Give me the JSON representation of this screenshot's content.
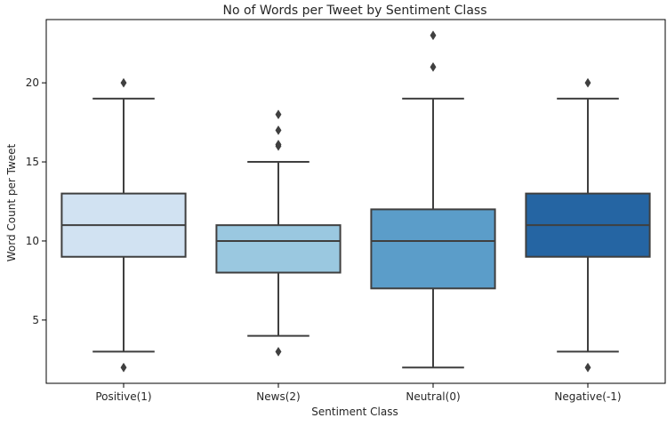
{
  "chart_data": {
    "type": "boxplot",
    "title": "No of Words per Tweet by Sentiment Class",
    "xlabel": "Sentiment Class",
    "ylabel": "Word Count per Tweet",
    "ylim": [
      1,
      24
    ],
    "yticks": [
      5,
      10,
      15,
      20
    ],
    "grid": false,
    "categories": [
      "Positive(1)",
      "News(2)",
      "Neutral(0)",
      "Negative(-1)"
    ],
    "boxes": [
      {
        "category": "Positive(1)",
        "q1": 9,
        "median": 11,
        "q3": 13,
        "whisker_low": 3,
        "whisker_high": 19,
        "outliers": [
          2,
          20
        ],
        "color": "#d1e2f2"
      },
      {
        "category": "News(2)",
        "q1": 8,
        "median": 10,
        "q3": 11,
        "whisker_low": 4,
        "whisker_high": 15,
        "outliers": [
          3,
          16,
          16.1,
          17,
          18
        ],
        "color": "#9ac8e0"
      },
      {
        "category": "Neutral(0)",
        "q1": 7,
        "median": 10,
        "q3": 12,
        "whisker_low": 2,
        "whisker_high": 19,
        "outliers": [
          21,
          23
        ],
        "color": "#5b9dc9"
      },
      {
        "category": "Negative(-1)",
        "q1": 9,
        "median": 11,
        "q3": 13,
        "whisker_low": 3,
        "whisker_high": 19,
        "outliers": [
          2,
          20
        ],
        "color": "#2565a3"
      }
    ],
    "line_color": "#3f3f3f"
  }
}
